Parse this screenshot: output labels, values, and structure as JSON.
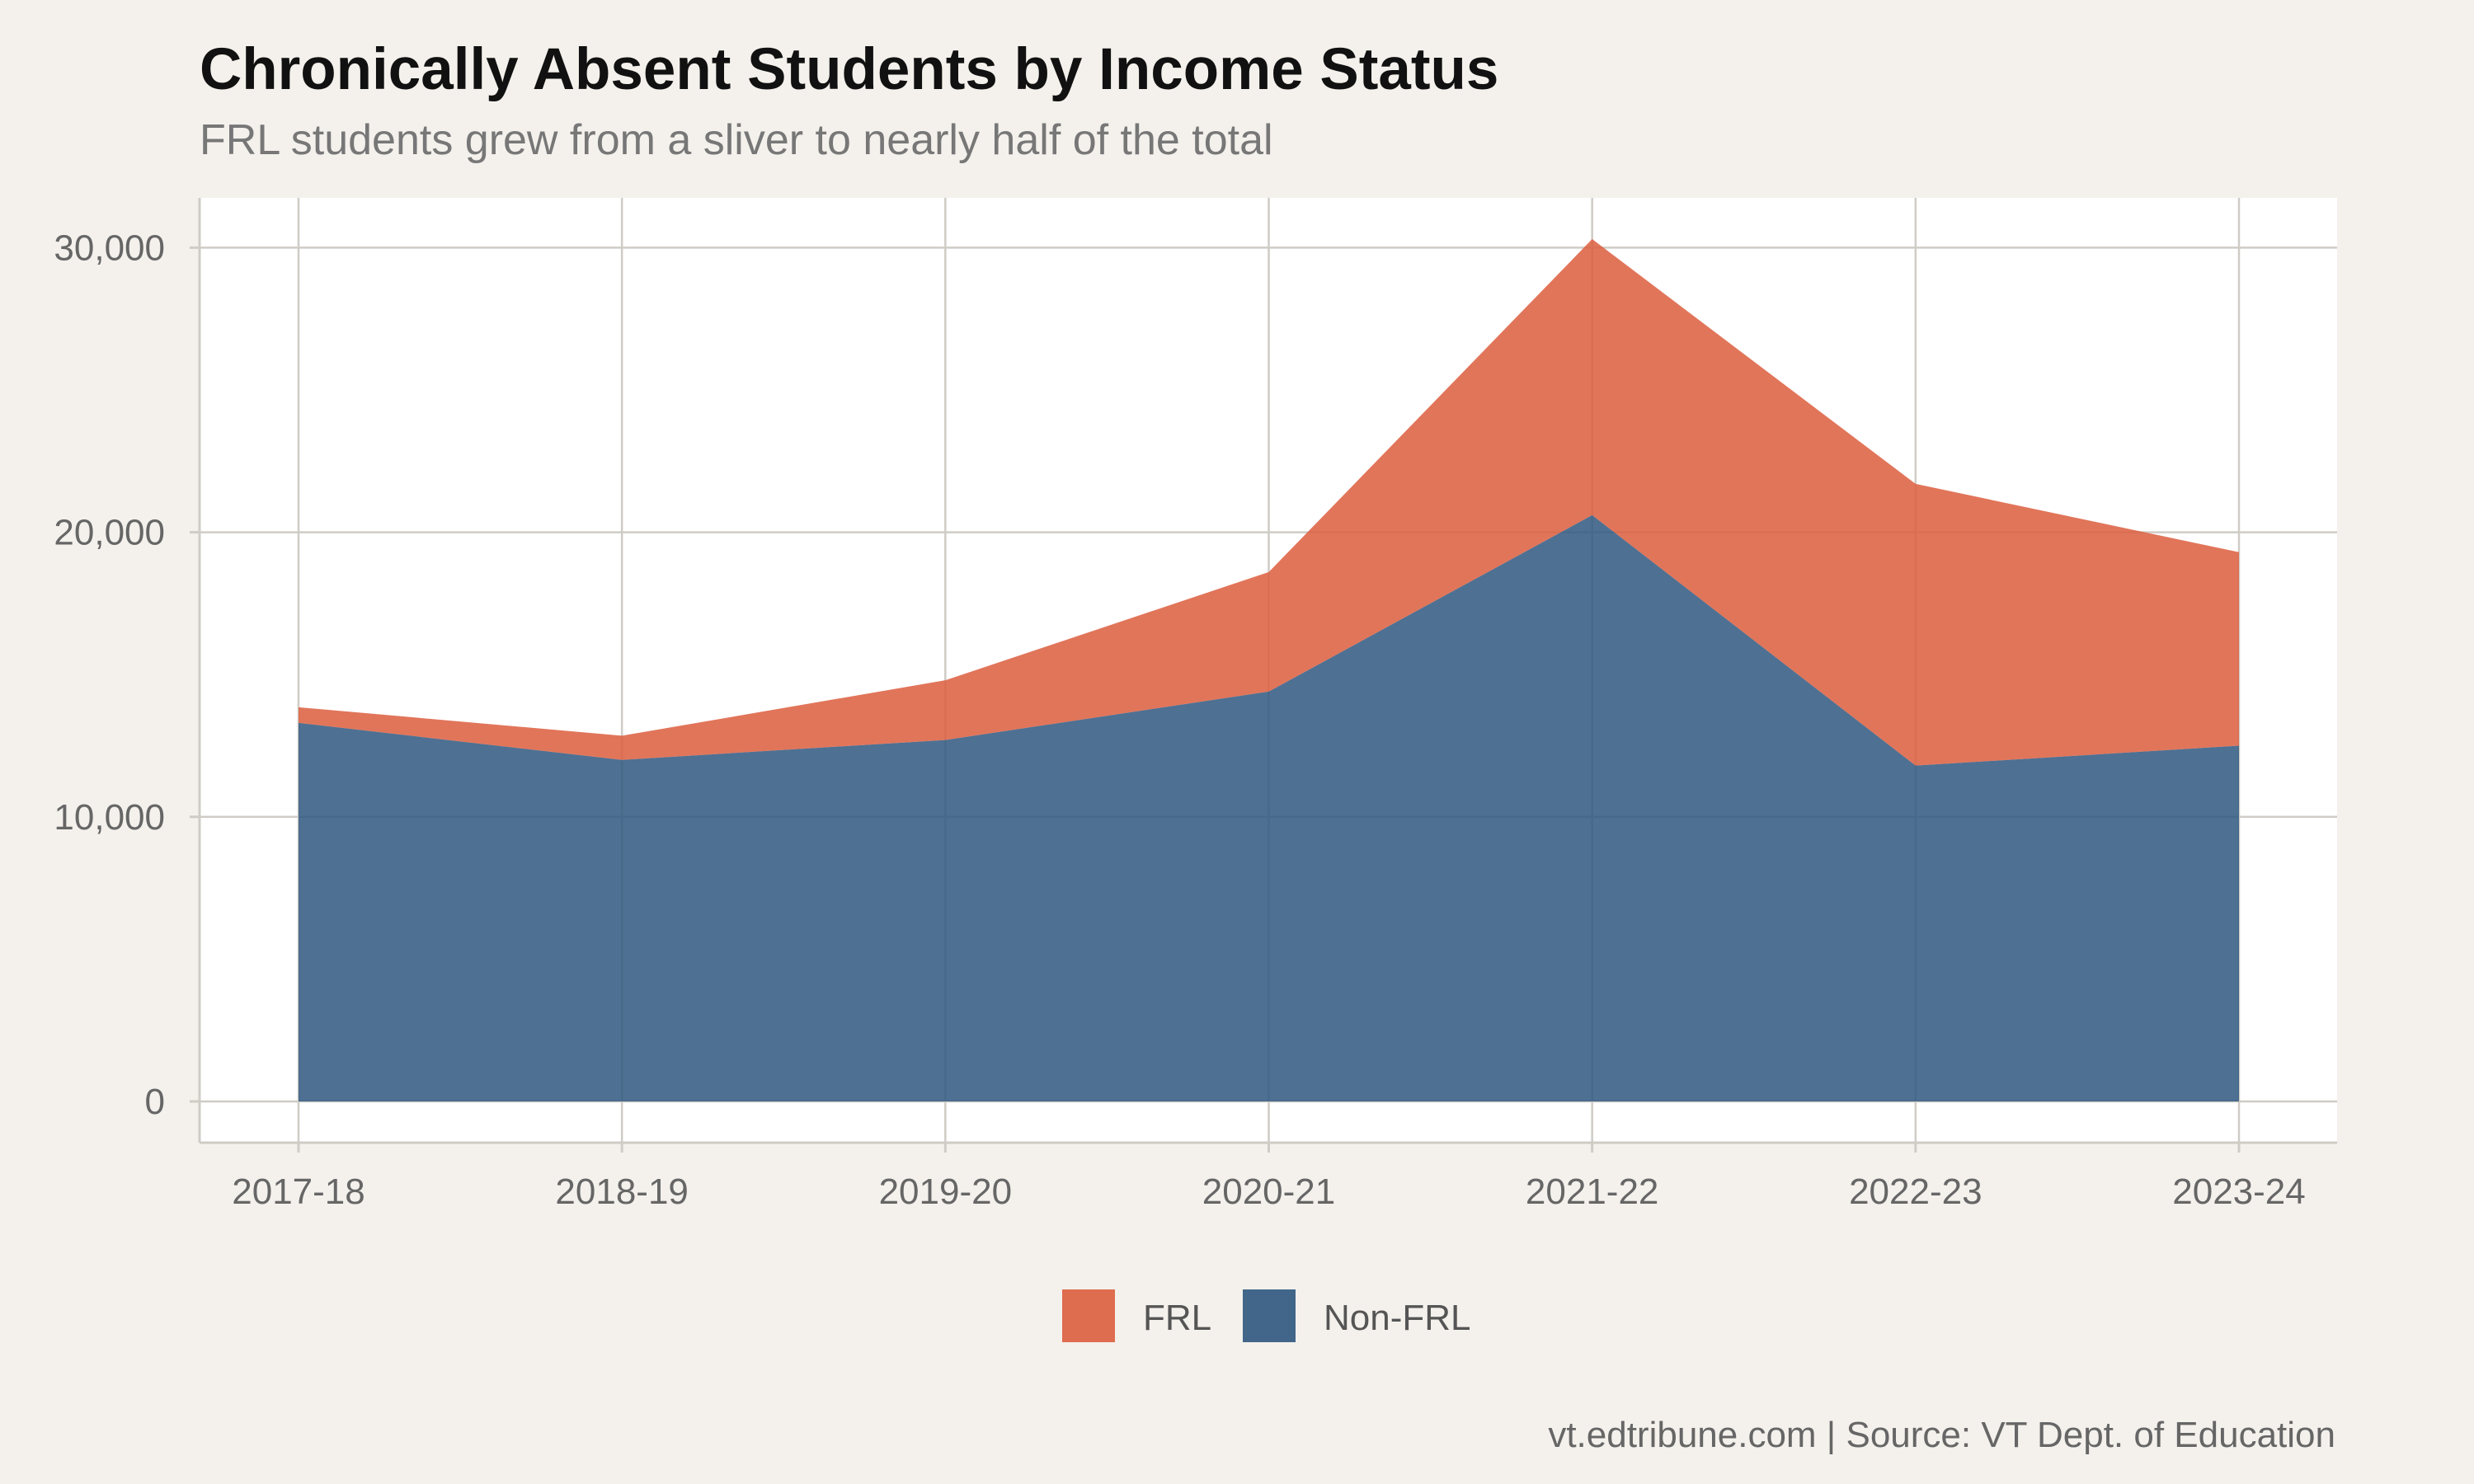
{
  "title": "Chronically Absent Students by Income Status",
  "subtitle": "FRL students grew from a sliver to nearly half of the total",
  "caption": "vt.edtribune.com | Source: VT Dept. of Education",
  "colors": {
    "background": "#f4f1ec",
    "panel": "#ffffff",
    "grid": "#cfccc6",
    "frl": "#dc5d3d",
    "non_frl": "#2f577f"
  },
  "chart_data": {
    "type": "area",
    "stacked": true,
    "categories": [
      "2017-18",
      "2018-19",
      "2019-20",
      "2020-21",
      "2021-22",
      "2022-23",
      "2023-24"
    ],
    "series": [
      {
        "name": "Non-FRL",
        "values": [
          13300,
          12000,
          12700,
          14400,
          20600,
          11800,
          12500
        ]
      },
      {
        "name": "FRL",
        "values": [
          550,
          850,
          2100,
          4200,
          9700,
          9900,
          6800
        ]
      }
    ],
    "ylim": [
      -1450,
      31750
    ],
    "yticks": [
      0,
      10000,
      20000,
      30000
    ],
    "ytick_labels": [
      "0",
      "10,000",
      "20,000",
      "30,000"
    ],
    "xlabel": "",
    "ylabel": "",
    "grid": true,
    "legend": {
      "position": "bottom",
      "entries": [
        "FRL",
        "Non-FRL"
      ]
    }
  }
}
